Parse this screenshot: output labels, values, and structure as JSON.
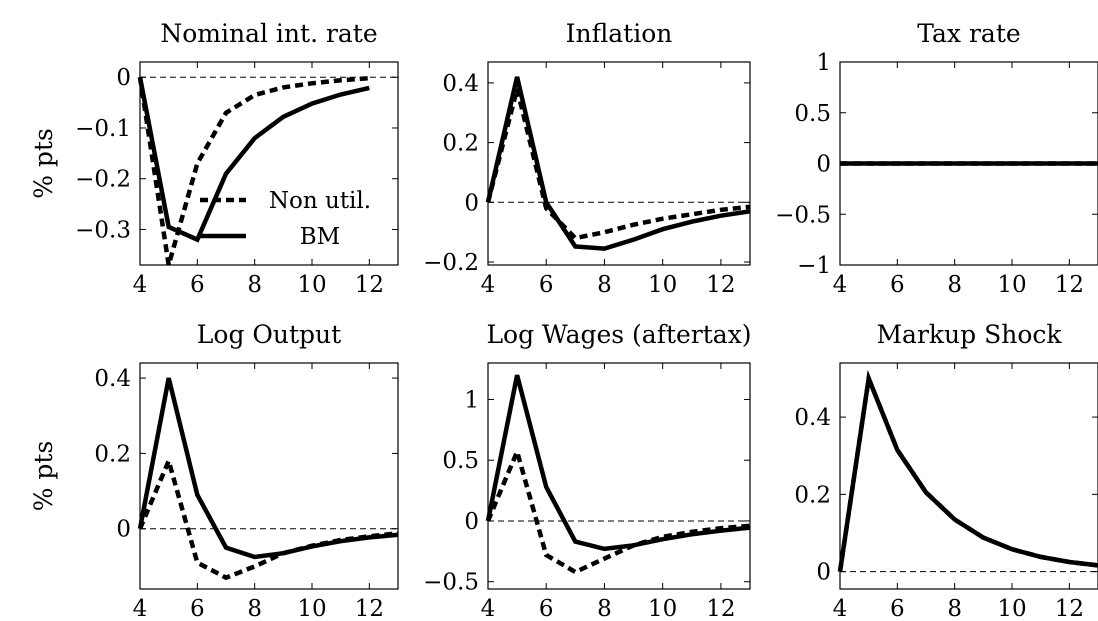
{
  "chart_data": [
    {
      "type": "line",
      "title": "Nominal int. rate",
      "ylabel": "% pts",
      "xlim": [
        4,
        13
      ],
      "ylim": [
        -0.37,
        0.03
      ],
      "xticks": [
        4,
        6,
        8,
        10,
        12
      ],
      "yticks": [
        0,
        -0.1,
        -0.2,
        -0.3
      ],
      "ytick_labels": [
        "0",
        "−0.1",
        "−0.2",
        "−0.3"
      ],
      "legend": {
        "placement": "center-left",
        "entries": [
          "Non util.",
          "BM"
        ]
      },
      "zero_line": true,
      "series": [
        {
          "name": "Non util.",
          "style": "dashed",
          "x": [
            4,
            5,
            6,
            7,
            8,
            9,
            10,
            11,
            12
          ],
          "y": [
            0,
            -0.37,
            -0.17,
            -0.07,
            -0.035,
            -0.02,
            -0.012,
            -0.006,
            -0.002
          ]
        },
        {
          "name": "BM",
          "style": "solid",
          "x": [
            4,
            5,
            6,
            7,
            8,
            9,
            10,
            11,
            12
          ],
          "y": [
            0,
            -0.295,
            -0.32,
            -0.19,
            -0.12,
            -0.078,
            -0.052,
            -0.034,
            -0.021
          ]
        }
      ]
    },
    {
      "type": "line",
      "title": "Inflation",
      "ylabel": "",
      "xlim": [
        4,
        13
      ],
      "ylim": [
        -0.21,
        0.47
      ],
      "xticks": [
        4,
        6,
        8,
        10,
        12
      ],
      "yticks": [
        0.4,
        0.2,
        0,
        -0.2
      ],
      "ytick_labels": [
        "0.4",
        "0.2",
        "0",
        "−0.2"
      ],
      "zero_line": true,
      "series": [
        {
          "style": "dashed",
          "x": [
            4,
            5,
            6,
            7,
            8,
            9,
            10,
            11,
            12,
            13
          ],
          "y": [
            0,
            0.38,
            -0.02,
            -0.12,
            -0.1,
            -0.075,
            -0.055,
            -0.04,
            -0.025,
            -0.015
          ]
        },
        {
          "style": "solid",
          "x": [
            4,
            5,
            6,
            7,
            8,
            9,
            10,
            11,
            12,
            13
          ],
          "y": [
            0,
            0.42,
            0.0,
            -0.148,
            -0.155,
            -0.125,
            -0.09,
            -0.065,
            -0.045,
            -0.03
          ]
        }
      ]
    },
    {
      "type": "line",
      "title": "Tax rate",
      "ylabel": "",
      "xlim": [
        4,
        13
      ],
      "ylim": [
        -1,
        1
      ],
      "xticks": [
        4,
        6,
        8,
        10,
        12
      ],
      "yticks": [
        1,
        0.5,
        0,
        -0.5,
        -1
      ],
      "ytick_labels": [
        "1",
        "0.5",
        "0",
        "−0.5",
        "−1"
      ],
      "zero_line": false,
      "series": [
        {
          "style": "dashed",
          "x": [
            4,
            13
          ],
          "y": [
            0,
            0
          ]
        },
        {
          "style": "solid",
          "x": [
            4,
            13
          ],
          "y": [
            0,
            0
          ]
        }
      ]
    },
    {
      "type": "line",
      "title": "Log Output",
      "ylabel": "% pts",
      "xlim": [
        4,
        13
      ],
      "ylim": [
        -0.16,
        0.44
      ],
      "xticks": [
        4,
        6,
        8,
        10,
        12
      ],
      "yticks": [
        0.4,
        0.2,
        0
      ],
      "ytick_labels": [
        "0.4",
        "0.2",
        "0"
      ],
      "zero_line": true,
      "series": [
        {
          "style": "dashed",
          "x": [
            4,
            5,
            6,
            7,
            8,
            9,
            10,
            11,
            12,
            13
          ],
          "y": [
            0,
            0.18,
            -0.09,
            -0.13,
            -0.1,
            -0.065,
            -0.045,
            -0.03,
            -0.02,
            -0.012
          ]
        },
        {
          "style": "solid",
          "x": [
            4,
            5,
            6,
            7,
            8,
            9,
            10,
            11,
            12,
            13
          ],
          "y": [
            0,
            0.4,
            0.09,
            -0.05,
            -0.075,
            -0.065,
            -0.047,
            -0.033,
            -0.023,
            -0.016
          ]
        }
      ]
    },
    {
      "type": "line",
      "title": "Log Wages (aftertax)",
      "ylabel": "",
      "xlim": [
        4,
        13
      ],
      "ylim": [
        -0.56,
        1.3
      ],
      "xticks": [
        4,
        6,
        8,
        10,
        12
      ],
      "yticks": [
        1,
        0.5,
        0,
        -0.5
      ],
      "ytick_labels": [
        "1",
        "0.5",
        "0",
        "−0.5"
      ],
      "zero_line": true,
      "series": [
        {
          "style": "dashed",
          "x": [
            4,
            5,
            6,
            7,
            8,
            9,
            10,
            11,
            12,
            13
          ],
          "y": [
            0,
            0.57,
            -0.28,
            -0.42,
            -0.31,
            -0.2,
            -0.13,
            -0.09,
            -0.06,
            -0.04
          ]
        },
        {
          "style": "solid",
          "x": [
            4,
            5,
            6,
            7,
            8,
            9,
            10,
            11,
            12,
            13
          ],
          "y": [
            0,
            1.2,
            0.28,
            -0.17,
            -0.23,
            -0.2,
            -0.15,
            -0.11,
            -0.08,
            -0.055
          ]
        }
      ]
    },
    {
      "type": "line",
      "title": "Markup Shock",
      "ylabel": "",
      "xlim": [
        4,
        13
      ],
      "ylim": [
        -0.045,
        0.54
      ],
      "xticks": [
        4,
        6,
        8,
        10,
        12
      ],
      "yticks": [
        0.4,
        0.2,
        0
      ],
      "ytick_labels": [
        "0.4",
        "0.2",
        "0"
      ],
      "zero_line": true,
      "series": [
        {
          "style": "dashed",
          "x": [
            4,
            5,
            6,
            7,
            8,
            9,
            10,
            11,
            12,
            13
          ],
          "y": [
            0,
            0.5,
            0.315,
            0.205,
            0.135,
            0.088,
            0.058,
            0.038,
            0.025,
            0.016
          ]
        },
        {
          "style": "solid",
          "x": [
            4,
            5,
            6,
            7,
            8,
            9,
            10,
            11,
            12,
            13
          ],
          "y": [
            0,
            0.5,
            0.315,
            0.205,
            0.135,
            0.088,
            0.058,
            0.038,
            0.025,
            0.016
          ]
        }
      ]
    }
  ]
}
